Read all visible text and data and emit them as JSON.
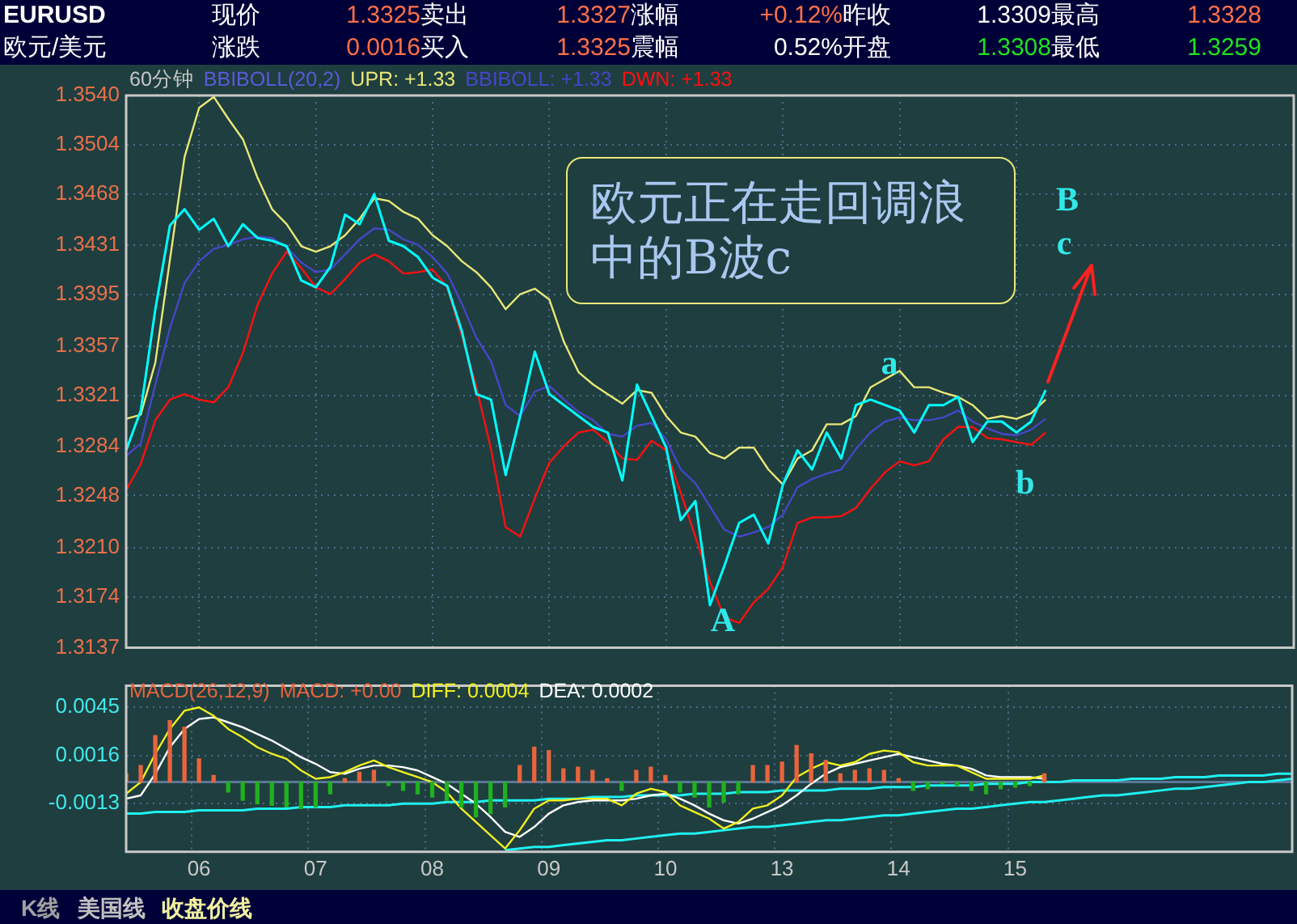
{
  "chart_data": [
    {
      "type": "other",
      "annotations": [
        "EURUSD",
        "现价",
        "1.3325",
        "卖出",
        "1.3327",
        "涨幅",
        "+0.12%",
        "昨收",
        "1.3309",
        "最高",
        "1.3328",
        "欧元/美元",
        "涨跌",
        "0.0016",
        "买入",
        "1.3325",
        "震幅",
        "0.52%",
        "开盘",
        "1.3308",
        "最低",
        "1.3259"
      ]
    },
    {
      "type": "line",
      "title": "60分钟",
      "legend_title": "BBIBOLL(20,2)",
      "legend": "top left",
      "tick_labels": "y",
      "grid": true,
      "categories": [
        null,
        null,
        null,
        null,
        null,
        "06",
        null,
        null,
        null,
        null,
        null,
        null,
        null,
        "07",
        null,
        null,
        null,
        null,
        null,
        null,
        null,
        "08",
        null,
        null,
        null,
        null,
        null,
        null,
        null,
        "09",
        null,
        null,
        null,
        null,
        null,
        null,
        null,
        "10",
        null,
        null,
        null,
        null,
        null,
        null,
        null,
        "13",
        null,
        null,
        null,
        null,
        null,
        null,
        null,
        "14",
        null,
        null,
        null,
        null,
        null,
        null,
        null,
        "15",
        null,
        null,
        null,
        null,
        null,
        null,
        null,
        null,
        null,
        null,
        null,
        null,
        null,
        null,
        null,
        null,
        null,
        null,
        null
      ],
      "ylim": [
        1.3137,
        1.354
      ],
      "yticks": [
        {
          "value": 1.354,
          "label": "1.3540"
        },
        1.3504,
        1.3468,
        1.3431,
        1.3395,
        1.3357,
        1.3321,
        1.3284,
        1.3248,
        {
          "value": 1.321,
          "label": "1.3210"
        },
        1.3174,
        1.3137
      ],
      "annotations": [
        "欧元正在走回调浪中的B波c",
        "A",
        "a",
        "b",
        "B",
        "c"
      ],
      "series": [
        {
          "color": "#00ffff",
          "values": [
            1.3281,
            1.331,
            1.3384,
            1.3445,
            1.3457,
            1.3442,
            1.345,
            1.343,
            1.3446,
            1.3436,
            1.3434,
            1.343,
            1.3405,
            1.34,
            1.3415,
            1.3453,
            1.3446,
            1.3468,
            1.3434,
            1.343,
            1.3422,
            1.3407,
            1.3401,
            1.3368,
            1.3322,
            1.3318,
            1.3263,
            1.3306,
            1.3353,
            1.3322,
            1.3314,
            1.3306,
            1.3298,
            1.3294,
            1.3259,
            1.3329,
            1.3306,
            1.3283,
            1.323,
            1.3244,
            1.3168,
            1.3197,
            1.3228,
            1.3234,
            1.3213,
            1.3256,
            1.3281,
            1.3267,
            1.3294,
            1.3275,
            1.3314,
            1.3318,
            1.3314,
            1.331,
            1.3294,
            1.3314,
            1.3314,
            1.332,
            1.3287,
            1.3302,
            1.3302,
            1.3294,
            1.3302,
            1.3325,
            null,
            null,
            null,
            null,
            null,
            null,
            null,
            null,
            null,
            null,
            null,
            null,
            null,
            null,
            null,
            null,
            null
          ]
        },
        {
          "name": "UPR: +1.33",
          "color": "#e8e878",
          "values": [
            1.3304,
            1.3307,
            1.3345,
            1.342,
            1.3495,
            1.3531,
            1.3539,
            1.3523,
            1.3508,
            1.348,
            1.3457,
            1.3446,
            1.343,
            1.3426,
            1.343,
            1.3438,
            1.345,
            1.3465,
            1.3463,
            1.3455,
            1.345,
            1.3438,
            1.343,
            1.3419,
            1.3411,
            1.34,
            1.3384,
            1.3395,
            1.3399,
            1.3391,
            1.336,
            1.3338,
            1.3329,
            1.3322,
            1.3315,
            1.3325,
            1.3323,
            1.3306,
            1.3294,
            1.3291,
            1.3279,
            1.3275,
            1.3283,
            1.3283,
            1.3267,
            1.3256,
            1.3275,
            1.3281,
            1.33,
            1.33,
            1.3306,
            1.3327,
            1.3333,
            1.3339,
            1.3327,
            1.3327,
            1.3323,
            1.332,
            1.3314,
            1.3304,
            1.3306,
            1.3304,
            1.3308,
            1.3318,
            null,
            null,
            null,
            null,
            null,
            null,
            null,
            null,
            null,
            null,
            null,
            null,
            null,
            null,
            null,
            null,
            null
          ]
        },
        {
          "name": "BBIBOLL: +1.33",
          "color": "#4646c8",
          "values": [
            1.3277,
            1.3286,
            1.3329,
            1.337,
            1.3403,
            1.3419,
            1.3428,
            1.3431,
            1.3435,
            1.3437,
            1.3436,
            1.3429,
            1.3418,
            1.3411,
            1.3413,
            1.3424,
            1.3435,
            1.3443,
            1.3442,
            1.3435,
            1.3431,
            1.3422,
            1.341,
            1.3388,
            1.3363,
            1.3346,
            1.3314,
            1.3306,
            1.3324,
            1.3328,
            1.3318,
            1.3309,
            1.3303,
            1.3293,
            1.3291,
            1.3299,
            1.3301,
            1.3289,
            1.3267,
            1.3257,
            1.324,
            1.3223,
            1.3218,
            1.3221,
            1.3225,
            1.3234,
            1.3254,
            1.326,
            1.3264,
            1.3267,
            1.3282,
            1.3294,
            1.3302,
            1.3305,
            1.3303,
            1.3303,
            1.3305,
            1.331,
            1.3302,
            1.3297,
            1.3293,
            1.3292,
            1.3296,
            1.3304,
            null,
            null,
            null,
            null,
            null,
            null,
            null,
            null,
            null,
            null,
            null,
            null,
            null,
            null,
            null,
            null,
            null
          ]
        },
        {
          "name": "DWN: +1.33",
          "color": "#ff1010",
          "values": [
            1.3252,
            1.3271,
            1.3303,
            1.3318,
            1.3322,
            1.3318,
            1.3316,
            1.3327,
            1.3352,
            1.3387,
            1.341,
            1.3426,
            1.3414,
            1.34,
            1.3395,
            1.3406,
            1.3418,
            1.3424,
            1.3419,
            1.341,
            1.3411,
            1.3413,
            1.34,
            1.3365,
            1.3327,
            1.3282,
            1.3225,
            1.3218,
            1.3246,
            1.3272,
            1.3284,
            1.3294,
            1.3296,
            1.3287,
            1.3275,
            1.3274,
            1.3288,
            1.3281,
            1.325,
            1.3218,
            1.3185,
            1.3159,
            1.3155,
            1.317,
            1.318,
            1.3196,
            1.3228,
            1.3232,
            1.3232,
            1.3233,
            1.3239,
            1.3253,
            1.3265,
            1.3273,
            1.327,
            1.3273,
            1.3289,
            1.3298,
            1.3298,
            1.329,
            1.3289,
            1.3287,
            1.3285,
            1.3294,
            null,
            null,
            null,
            null,
            null,
            null,
            null,
            null,
            null,
            null,
            null,
            null,
            null,
            null,
            null,
            null,
            null
          ]
        }
      ]
    },
    {
      "type": "bar",
      "title": "MACD(26,12,9)",
      "legend": "top left",
      "grid": true,
      "categories": [
        null,
        null,
        null,
        null,
        null,
        "06",
        null,
        null,
        null,
        null,
        null,
        null,
        null,
        "07",
        null,
        null,
        null,
        null,
        null,
        null,
        null,
        "08",
        null,
        null,
        null,
        null,
        null,
        null,
        null,
        "09",
        null,
        null,
        null,
        null,
        null,
        null,
        null,
        "10",
        null,
        null,
        null,
        null,
        null,
        null,
        null,
        "13",
        null,
        null,
        null,
        null,
        null,
        null,
        null,
        "14",
        null,
        null,
        null,
        null,
        null,
        null,
        null,
        "15",
        null,
        null,
        null,
        null,
        null,
        null,
        null,
        null,
        null,
        null,
        null,
        null,
        null,
        null,
        null,
        null,
        null,
        null,
        null
      ],
      "ylim": [
        -0.0042,
        0.0058
      ],
      "yticks": [
        0.0045,
        0.0016,
        -0.0013
      ],
      "ref_lines": [
        {
          "axis": "y",
          "value": 0,
          "color": "#5a7896"
        }
      ],
      "series": [
        {
          "name": "MACD: +0.00",
          "color": "#e8643c",
          "values": [
            0.0005,
            0.001,
            0.0028,
            0.0037,
            0.0033,
            0.0014,
            0.0004,
            -0.0006,
            -0.0011,
            -0.0013,
            -0.0014,
            -0.0015,
            -0.0016,
            -0.0015,
            -0.0007,
            0.0002,
            0.0006,
            0.0007,
            -0.0002,
            -0.0005,
            -0.0007,
            -0.0009,
            -0.0011,
            -0.0015,
            -0.0021,
            -0.0019,
            -0.0015,
            0.001,
            0.0021,
            0.0019,
            0.0008,
            0.0009,
            0.0007,
            0.0002,
            -0.0005,
            0.0007,
            0.0009,
            0.0004,
            -0.0006,
            -0.0009,
            -0.0015,
            -0.0012,
            -0.0007,
            0.001,
            0.001,
            0.0012,
            0.0022,
            0.0017,
            0.0013,
            0.0005,
            0.0007,
            0.0008,
            0.0007,
            0.0002,
            -0.0005,
            -0.0004,
            -0.0001,
            -0.0002,
            -0.0005,
            -0.0007,
            -0.0004,
            -0.0003,
            -0.0002,
            0.0005,
            null,
            null,
            null,
            null,
            null,
            null,
            null,
            null,
            null,
            null,
            null,
            null,
            null,
            null,
            null,
            null,
            null
          ],
          "colors": [
            "#e8643c",
            "#e8643c",
            "#e8643c",
            "#e8643c",
            "#e8643c",
            "#e8643c",
            "#e8643c",
            "#20b020",
            "#20b020",
            "#20b020",
            "#20b020",
            "#20b020",
            "#20b020",
            "#20b020",
            "#20b020",
            "#e8643c",
            "#e8643c",
            "#e8643c",
            "#20b020",
            "#20b020",
            "#20b020",
            "#20b020",
            "#20b020",
            "#20b020",
            "#20b020",
            "#20b020",
            "#20b020",
            "#e8643c",
            "#e8643c",
            "#e8643c",
            "#e8643c",
            "#e8643c",
            "#e8643c",
            "#e8643c",
            "#20b020",
            "#e8643c",
            "#e8643c",
            "#e8643c",
            "#20b020",
            "#20b020",
            "#20b020",
            "#20b020",
            "#20b020",
            "#e8643c",
            "#e8643c",
            "#e8643c",
            "#e8643c",
            "#e8643c",
            "#e8643c",
            "#e8643c",
            "#e8643c",
            "#e8643c",
            "#e8643c",
            "#e8643c",
            "#20b020",
            "#20b020",
            "#20b020",
            "#20b020",
            "#20b020",
            "#20b020",
            "#20b020",
            "#20b020",
            "#20b020",
            "#e8643c",
            "#e8643c",
            "#e8643c",
            "#e8643c",
            "#e8643c",
            "#e8643c",
            "#e8643c",
            "#e8643c",
            "#e8643c",
            "#e8643c",
            "#e8643c",
            "#e8643c",
            "#e8643c",
            "#e8643c",
            "#e8643c",
            "#e8643c",
            "#e8643c",
            "#e8643c"
          ]
        },
        {
          "type": "line",
          "name": "DIFF: 0.0004",
          "color": "#f0f020",
          "values": [
            -0.0007,
            0,
            0.0017,
            0.0032,
            0.0043,
            0.0045,
            0.004,
            0.0032,
            0.0027,
            0.0021,
            0.0017,
            0.0014,
            0.0007,
            0.0002,
            0.0003,
            0.0006,
            0.001,
            0.0013,
            0.0009,
            0.0006,
            0.0003,
            0,
            -0.0006,
            -0.0016,
            -0.0024,
            -0.0032,
            -0.004,
            -0.0029,
            -0.0016,
            -0.0011,
            -0.0011,
            -0.001,
            -0.001,
            -0.001,
            -0.0014,
            -0.0007,
            -0.0004,
            -0.0006,
            -0.0014,
            -0.0018,
            -0.0022,
            -0.0028,
            -0.0024,
            -0.0016,
            -0.0014,
            -0.0008,
            0.0003,
            0.0008,
            0.0012,
            0.001,
            0.0012,
            0.0017,
            0.0019,
            0.0018,
            0.0012,
            0.001,
            0.001,
            0.001,
            0.0006,
            0.0002,
            0.0002,
            0.0002,
            0.0002,
            0.0004,
            null,
            null,
            null,
            null,
            null,
            null,
            null,
            null,
            null,
            null,
            null,
            null,
            null,
            null,
            null,
            null,
            null
          ]
        },
        {
          "type": "line",
          "name": "DEA: 0.0002",
          "color": "#ffffff",
          "values": [
            -0.001,
            -0.0008,
            0.0005,
            0.0021,
            0.0032,
            0.0038,
            0.0039,
            0.0036,
            0.0033,
            0.0029,
            0.0025,
            0.002,
            0.0015,
            0.0011,
            0.0006,
            0.0005,
            0.0008,
            0.001,
            0.001,
            0.0009,
            0.0007,
            0.0003,
            -0.0001,
            -0.0007,
            -0.0013,
            -0.0021,
            -0.003,
            -0.0033,
            -0.0027,
            -0.0019,
            -0.0014,
            -0.0012,
            -0.0011,
            -0.0011,
            -0.0011,
            -0.001,
            -0.0008,
            -0.0007,
            -0.001,
            -0.0014,
            -0.0019,
            -0.0023,
            -0.0025,
            -0.0022,
            -0.0018,
            -0.0014,
            -0.0008,
            -0.0001,
            0.0005,
            0.0009,
            0.0011,
            0.0013,
            0.0015,
            0.0017,
            0.0015,
            0.0013,
            0.0011,
            0.001,
            0.0008,
            0.0004,
            0.0003,
            0.0003,
            0.0003,
            0.0002,
            null,
            null,
            null,
            null,
            null,
            null,
            null,
            null,
            null,
            null,
            null,
            null,
            null,
            null,
            null,
            null,
            null
          ]
        },
        {
          "type": "line",
          "color": "#20f0f0",
          "values": [
            -0.0019,
            -0.0019,
            -0.0018,
            -0.0018,
            -0.0018,
            -0.0017,
            -0.0017,
            -0.0017,
            -0.0017,
            -0.0016,
            -0.0016,
            -0.0016,
            -0.0015,
            -0.0015,
            -0.0015,
            -0.0014,
            -0.0014,
            -0.0014,
            -0.0014,
            -0.0013,
            -0.0013,
            -0.0013,
            -0.0012,
            -0.0012,
            -0.0012,
            -0.0011,
            -0.0011,
            -0.0011,
            -0.0011,
            -0.001,
            -0.001,
            -0.001,
            -0.0009,
            -0.0009,
            -0.0009,
            -0.0008,
            -0.0008,
            -0.0008,
            -0.0008,
            -0.0007,
            -0.0007,
            -0.0007,
            -0.0006,
            -0.0006,
            -0.0006,
            -0.0005,
            -0.0005,
            -0.0005,
            -0.0005,
            -0.0004,
            -0.0004,
            -0.0004,
            -0.0003,
            -0.0003,
            -0.0003,
            -0.0002,
            -0.0002,
            -0.0002,
            -0.0002,
            -0.0001,
            -0.0001,
            -0.0001,
            0,
            0,
            0,
            0.0001,
            0.0001,
            0.0001,
            0.0001,
            0.0002,
            0.0002,
            0.0002,
            0.0003,
            0.0003,
            0.0003,
            0.0004,
            0.0004,
            0.0004,
            0.0004,
            0.0005,
            0.0005
          ]
        },
        {
          "type": "line",
          "color": "#20f0f0",
          "values": [
            null,
            null,
            null,
            null,
            null,
            null,
            null,
            null,
            null,
            null,
            null,
            null,
            null,
            null,
            null,
            null,
            null,
            null,
            null,
            null,
            null,
            null,
            null,
            null,
            null,
            null,
            -0.0041,
            -0.004,
            -0.0039,
            -0.0039,
            -0.0038,
            -0.0037,
            -0.0036,
            -0.0035,
            -0.0035,
            -0.0034,
            -0.0033,
            -0.0032,
            -0.0031,
            -0.0031,
            -0.003,
            -0.0029,
            -0.0028,
            -0.0027,
            -0.0027,
            -0.0026,
            -0.0025,
            -0.0024,
            -0.0023,
            -0.0023,
            -0.0022,
            -0.0021,
            -0.002,
            -0.002,
            -0.0019,
            -0.0018,
            -0.0017,
            -0.0016,
            -0.0016,
            -0.0015,
            -0.0014,
            -0.0013,
            -0.0012,
            -0.0012,
            -0.0011,
            -0.001,
            -0.0009,
            -0.0008,
            -0.0008,
            -0.0007,
            -0.0006,
            -0.0005,
            -0.0004,
            -0.0004,
            -0.0003,
            -0.0002,
            -0.0001,
            0,
            0,
            0.0001,
            0.0002
          ]
        }
      ]
    },
    {
      "type": "other",
      "annotations": [
        "K线",
        "美国线",
        "收盘价线"
      ]
    }
  ]
}
